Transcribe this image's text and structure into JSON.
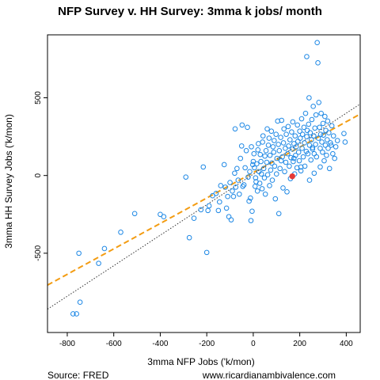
{
  "chart_data": {
    "type": "scatter",
    "title": "NFP Survey v. HH Survey: 3mma k jobs/ month",
    "xlabel": "3mma NFP Jobs ('k/mon)",
    "ylabel": "3mma HH Survey Jobs ('k/mon)",
    "xlim": [
      -885,
      460
    ],
    "ylim": [
      -1010,
      905
    ],
    "x_ticks": [
      -800,
      -600,
      -400,
      -200,
      0,
      200,
      400
    ],
    "y_ticks": [
      -500,
      0,
      500
    ],
    "x_tick_labels": [
      "-800",
      "-600",
      "-400",
      "-200",
      "0",
      "200",
      "400"
    ],
    "y_tick_labels": [
      "-500",
      "0",
      "500"
    ],
    "grid": false,
    "colors": {
      "points": "#1e88e5",
      "highlight": "#e53935",
      "fit": "#f39c12",
      "reference": "#333333"
    },
    "lines": [
      {
        "kind": "regression",
        "style": "dashed",
        "x": [
          -885,
          460
        ],
        "y": [
          -705,
          395
        ]
      },
      {
        "kind": "reference",
        "style": "dotted",
        "x": [
          -885,
          460
        ],
        "y": [
          -860,
          460
        ]
      }
    ],
    "highlight_point": {
      "x": 168,
      "y": -5
    },
    "points": [
      [
        -775,
        -890
      ],
      [
        -760,
        -890
      ],
      [
        -745,
        -815
      ],
      [
        -750,
        -500
      ],
      [
        -665,
        -565
      ],
      [
        -640,
        -470
      ],
      [
        -570,
        -365
      ],
      [
        -510,
        -245
      ],
      [
        -400,
        -250
      ],
      [
        -385,
        -265
      ],
      [
        -290,
        -10
      ],
      [
        -275,
        -400
      ],
      [
        -255,
        -275
      ],
      [
        -225,
        -220
      ],
      [
        -215,
        55
      ],
      [
        -200,
        -495
      ],
      [
        -195,
        -225
      ],
      [
        -190,
        -195
      ],
      [
        -175,
        -130
      ],
      [
        -160,
        -115
      ],
      [
        -150,
        -225
      ],
      [
        -145,
        -170
      ],
      [
        -140,
        -65
      ],
      [
        -125,
        70
      ],
      [
        -120,
        -75
      ],
      [
        -115,
        -210
      ],
      [
        -110,
        -135
      ],
      [
        -105,
        -265
      ],
      [
        -100,
        -45
      ],
      [
        -95,
        -285
      ],
      [
        -90,
        -100
      ],
      [
        -85,
        -135
      ],
      [
        -80,
        15
      ],
      [
        -78,
        300
      ],
      [
        -75,
        -75
      ],
      [
        -70,
        45
      ],
      [
        -65,
        -30
      ],
      [
        -60,
        -120
      ],
      [
        -55,
        110
      ],
      [
        -50,
        190
      ],
      [
        -48,
        325
      ],
      [
        -45,
        -70
      ],
      [
        -40,
        -60
      ],
      [
        -35,
        50
      ],
      [
        -30,
        160
      ],
      [
        -25,
        310
      ],
      [
        -22,
        -10
      ],
      [
        -18,
        -165
      ],
      [
        -15,
        25
      ],
      [
        -12,
        -145
      ],
      [
        -10,
        -290
      ],
      [
        -8,
        185
      ],
      [
        -5,
        -230
      ],
      [
        -2,
        70
      ],
      [
        0,
        90
      ],
      [
        3,
        140
      ],
      [
        5,
        50
      ],
      [
        8,
        -70
      ],
      [
        10,
        -15
      ],
      [
        12,
        -40
      ],
      [
        15,
        75
      ],
      [
        18,
        -100
      ],
      [
        20,
        165
      ],
      [
        22,
        205
      ],
      [
        25,
        25
      ],
      [
        28,
        -50
      ],
      [
        30,
        135
      ],
      [
        33,
        90
      ],
      [
        35,
        10
      ],
      [
        38,
        -85
      ],
      [
        40,
        215
      ],
      [
        42,
        255
      ],
      [
        45,
        45
      ],
      [
        48,
        -15
      ],
      [
        50,
        125
      ],
      [
        52,
        -120
      ],
      [
        55,
        160
      ],
      [
        58,
        85
      ],
      [
        60,
        300
      ],
      [
        62,
        5
      ],
      [
        65,
        195
      ],
      [
        68,
        240
      ],
      [
        70,
        -65
      ],
      [
        72,
        130
      ],
      [
        75,
        35
      ],
      [
        78,
        285
      ],
      [
        80,
        80
      ],
      [
        82,
        -30
      ],
      [
        85,
        185
      ],
      [
        88,
        150
      ],
      [
        90,
        225
      ],
      [
        92,
        60
      ],
      [
        95,
        -150
      ],
      [
        98,
        265
      ],
      [
        100,
        10
      ],
      [
        102,
        110
      ],
      [
        105,
        350
      ],
      [
        108,
        200
      ],
      [
        110,
        -245
      ],
      [
        112,
        160
      ],
      [
        115,
        45
      ],
      [
        118,
        245
      ],
      [
        120,
        95
      ],
      [
        122,
        355
      ],
      [
        125,
        120
      ],
      [
        128,
        -80
      ],
      [
        130,
        210
      ],
      [
        132,
        300
      ],
      [
        135,
        25
      ],
      [
        138,
        175
      ],
      [
        140,
        85
      ],
      [
        142,
        265
      ],
      [
        145,
        -105
      ],
      [
        148,
        140
      ],
      [
        150,
        315
      ],
      [
        152,
        190
      ],
      [
        155,
        60
      ],
      [
        158,
        230
      ],
      [
        160,
        -20
      ],
      [
        162,
        115
      ],
      [
        165,
        280
      ],
      [
        168,
        170
      ],
      [
        170,
        345
      ],
      [
        172,
        90
      ],
      [
        175,
        205
      ],
      [
        178,
        10
      ],
      [
        180,
        255
      ],
      [
        182,
        130
      ],
      [
        185,
        185
      ],
      [
        188,
        50
      ],
      [
        190,
        325
      ],
      [
        192,
        220
      ],
      [
        195,
        150
      ],
      [
        198,
        95
      ],
      [
        200,
        285
      ],
      [
        202,
        240
      ],
      [
        205,
        30
      ],
      [
        208,
        365
      ],
      [
        210,
        175
      ],
      [
        212,
        265
      ],
      [
        215,
        120
      ],
      [
        218,
        310
      ],
      [
        220,
        210
      ],
      [
        222,
        60
      ],
      [
        225,
        400
      ],
      [
        228,
        155
      ],
      [
        230,
        250
      ],
      [
        232,
        290
      ],
      [
        235,
        140
      ],
      [
        238,
        330
      ],
      [
        240,
        500
      ],
      [
        242,
        195
      ],
      [
        245,
        275
      ],
      [
        248,
        100
      ],
      [
        250,
        230
      ],
      [
        252,
        360
      ],
      [
        255,
        180
      ],
      [
        258,
        445
      ],
      [
        260,
        255
      ],
      [
        262,
        140
      ],
      [
        265,
        305
      ],
      [
        268,
        200
      ],
      [
        270,
        390
      ],
      [
        272,
        120
      ],
      [
        275,
        855
      ],
      [
        278,
        725
      ],
      [
        280,
        240
      ],
      [
        282,
        470
      ],
      [
        285,
        310
      ],
      [
        288,
        175
      ],
      [
        290,
        265
      ],
      [
        292,
        400
      ],
      [
        295,
        215
      ],
      [
        298,
        150
      ],
      [
        300,
        335
      ],
      [
        302,
        260
      ],
      [
        305,
        95
      ],
      [
        308,
        380
      ],
      [
        310,
        195
      ],
      [
        312,
        290
      ],
      [
        315,
        130
      ],
      [
        318,
        230
      ],
      [
        320,
        350
      ],
      [
        322,
        175
      ],
      [
        325,
        275
      ],
      [
        328,
        45
      ],
      [
        332,
        210
      ],
      [
        335,
        195
      ],
      [
        338,
        320
      ],
      [
        342,
        140
      ],
      [
        345,
        255
      ],
      [
        350,
        110
      ],
      [
        355,
        185
      ],
      [
        362,
        225
      ],
      [
        390,
        270
      ],
      [
        395,
        215
      ],
      [
        230,
        765
      ],
      [
        255,
        170
      ],
      [
        175,
        110
      ],
      [
        205,
        55
      ],
      [
        242,
        -30
      ],
      [
        262,
        15
      ],
      [
        288,
        55
      ]
    ]
  },
  "footer": {
    "source": "Source: FRED",
    "site": "www.ricardianambivalence.com"
  }
}
